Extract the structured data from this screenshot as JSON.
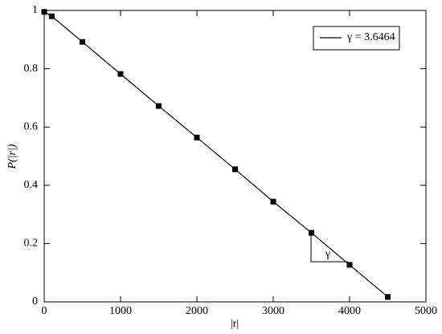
{
  "chart_data": {
    "type": "line",
    "x": [
      0,
      100,
      500,
      1000,
      1500,
      2000,
      2500,
      3000,
      3500,
      4000,
      4500
    ],
    "series": [
      {
        "name": "γ = 3.6464",
        "color": "#000000",
        "values": [
          0.995,
          0.98,
          0.892,
          0.782,
          0.672,
          0.564,
          0.455,
          0.344,
          0.237,
          0.127,
          0.017
        ]
      }
    ],
    "xlabel": "|r|",
    "ylabel": "P(|r|)",
    "annotation": "γ",
    "xlim": [
      0,
      5000
    ],
    "xticks": [
      0,
      1000,
      2000,
      3000,
      4000,
      5000
    ],
    "ylim": [
      0,
      1
    ],
    "yticks": [
      0,
      0.2,
      0.4,
      0.6,
      0.8,
      1
    ],
    "legend": "top-right",
    "markers": true
  }
}
